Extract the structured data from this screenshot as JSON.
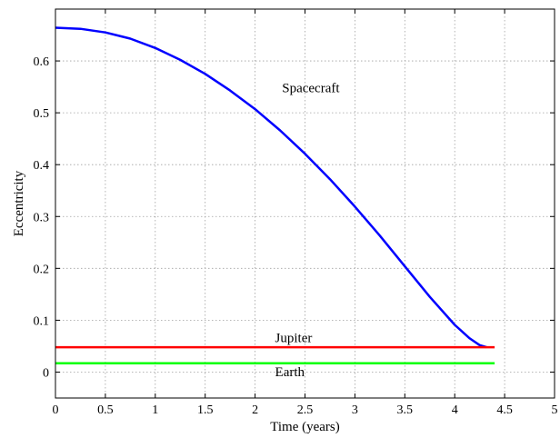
{
  "chart_data": {
    "type": "line",
    "title": "",
    "xlabel": "Time (years)",
    "ylabel": "Eccentricity",
    "xlim": [
      0,
      5
    ],
    "ylim": [
      -0.05,
      0.7
    ],
    "xticks": [
      "0",
      "0.5",
      "1",
      "1.5",
      "2",
      "2.5",
      "3",
      "3.5",
      "4",
      "4.5",
      "5"
    ],
    "yticks": [
      "0",
      "0.1",
      "0.2",
      "0.3",
      "0.4",
      "0.5",
      "0.6"
    ],
    "grid": true,
    "series": [
      {
        "name": "Spacecraft",
        "color": "#0000ff",
        "x": [
          0,
          0.25,
          0.5,
          0.75,
          1.0,
          1.25,
          1.5,
          1.75,
          2.0,
          2.25,
          2.5,
          2.75,
          3.0,
          3.25,
          3.5,
          3.75,
          4.0,
          4.15,
          4.25,
          4.32
        ],
        "y": [
          0.664,
          0.662,
          0.655,
          0.643,
          0.625,
          0.602,
          0.575,
          0.543,
          0.507,
          0.466,
          0.421,
          0.372,
          0.319,
          0.263,
          0.204,
          0.145,
          0.091,
          0.065,
          0.052,
          0.048
        ]
      },
      {
        "name": "Jupiter",
        "color": "#ff0000",
        "x": [
          0,
          4.4
        ],
        "y": [
          0.048,
          0.048
        ]
      },
      {
        "name": "Earth",
        "color": "#00ff00",
        "x": [
          0,
          4.4
        ],
        "y": [
          0.017,
          0.017
        ]
      }
    ],
    "annotations": [
      {
        "text": "Spacecraft",
        "x": 2.27,
        "y": 0.54
      },
      {
        "text": "Jupiter",
        "x": 2.2,
        "y": 0.058
      },
      {
        "text": "Earth",
        "x": 2.2,
        "y": -0.008
      }
    ]
  }
}
